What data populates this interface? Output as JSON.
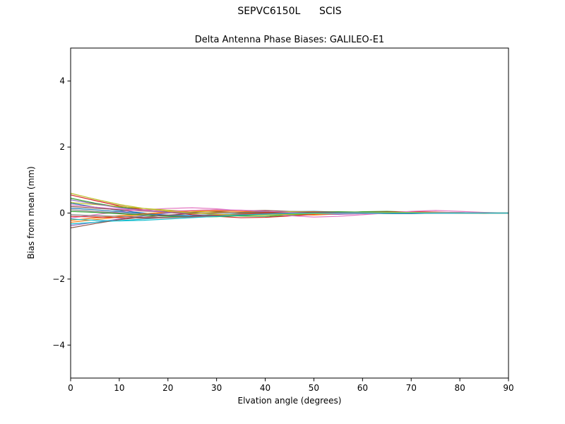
{
  "chart_data": {
    "type": "line",
    "title": "SEPVC6150L      SCIS",
    "axes_title": "Delta Antenna Phase Biases: GALILEO-E1",
    "xlabel": "Elvation angle (degrees)",
    "ylabel": "Bias from mean (mm)",
    "xlim": [
      0,
      90
    ],
    "ylim": [
      -5,
      5
    ],
    "x_ticks": [
      0,
      10,
      20,
      30,
      40,
      50,
      60,
      70,
      80,
      90
    ],
    "y_ticks": [
      -4,
      -2,
      0,
      2,
      4
    ],
    "grid": false,
    "legend": "none",
    "x": [
      0,
      5,
      10,
      15,
      20,
      25,
      30,
      35,
      40,
      45,
      50,
      55,
      60,
      65,
      70,
      75,
      80,
      85,
      90
    ],
    "series": [
      {
        "color": "#1f77b4",
        "values": [
          0.3,
          0.18,
          0.08,
          0.0,
          -0.08,
          -0.12,
          -0.1,
          -0.05,
          0.0,
          0.04,
          0.05,
          0.03,
          0.0,
          -0.02,
          -0.02,
          0.0,
          0.01,
          0.01,
          0.0
        ]
      },
      {
        "color": "#ff7f0e",
        "values": [
          -0.28,
          -0.2,
          -0.12,
          -0.05,
          0.02,
          0.08,
          0.1,
          0.06,
          0.01,
          -0.04,
          -0.06,
          -0.03,
          0.0,
          0.03,
          0.04,
          0.02,
          0.0,
          -0.01,
          0.0
        ]
      },
      {
        "color": "#2ca02c",
        "values": [
          0.45,
          0.3,
          0.18,
          0.1,
          0.04,
          0.0,
          -0.05,
          -0.09,
          -0.1,
          -0.06,
          -0.02,
          0.01,
          0.04,
          0.05,
          0.03,
          0.01,
          0.0,
          0.0,
          0.0
        ]
      },
      {
        "color": "#d62728",
        "values": [
          0.55,
          0.38,
          0.22,
          0.1,
          0.02,
          -0.05,
          -0.1,
          -0.14,
          -0.13,
          -0.09,
          -0.04,
          0.0,
          0.02,
          0.03,
          0.04,
          0.03,
          0.01,
          0.0,
          0.0
        ]
      },
      {
        "color": "#9467bd",
        "values": [
          -0.38,
          -0.28,
          -0.18,
          -0.08,
          0.0,
          0.06,
          0.09,
          0.08,
          0.04,
          0.0,
          -0.03,
          -0.04,
          -0.02,
          0.0,
          0.02,
          0.02,
          0.01,
          0.0,
          0.0
        ]
      },
      {
        "color": "#8c564b",
        "values": [
          0.2,
          0.15,
          0.1,
          0.06,
          0.03,
          0.02,
          0.04,
          0.07,
          0.08,
          0.05,
          0.02,
          0.0,
          -0.01,
          -0.01,
          0.0,
          0.01,
          0.01,
          0.0,
          0.0
        ]
      },
      {
        "color": "#e377c2",
        "values": [
          -0.15,
          -0.05,
          0.04,
          0.1,
          0.14,
          0.16,
          0.13,
          0.07,
          0.0,
          -0.08,
          -0.12,
          -0.1,
          -0.05,
          0.0,
          0.05,
          0.08,
          0.05,
          0.02,
          0.0
        ]
      },
      {
        "color": "#7f7f7f",
        "values": [
          0.1,
          0.05,
          0.0,
          -0.05,
          -0.09,
          -0.1,
          -0.06,
          -0.01,
          0.03,
          0.05,
          0.04,
          0.02,
          0.0,
          -0.01,
          -0.01,
          0.0,
          0.0,
          0.0,
          0.0
        ]
      },
      {
        "color": "#bcbd22",
        "values": [
          0.32,
          0.26,
          0.2,
          0.14,
          0.09,
          0.05,
          0.02,
          0.01,
          0.02,
          0.04,
          0.04,
          0.02,
          0.0,
          -0.01,
          0.0,
          0.01,
          0.01,
          0.0,
          0.0
        ]
      },
      {
        "color": "#17becf",
        "values": [
          -0.33,
          -0.28,
          -0.23,
          -0.18,
          -0.13,
          -0.09,
          -0.05,
          -0.02,
          0.0,
          0.01,
          0.01,
          0.0,
          -0.01,
          -0.01,
          0.0,
          0.0,
          0.0,
          0.0,
          0.0
        ]
      },
      {
        "color": "#1f77b4",
        "values": [
          0.15,
          0.1,
          0.04,
          -0.02,
          -0.06,
          -0.08,
          -0.07,
          -0.04,
          -0.01,
          0.02,
          0.03,
          0.02,
          0.01,
          0.0,
          0.0,
          0.0,
          0.0,
          0.0,
          0.0
        ]
      },
      {
        "color": "#ff7f0e",
        "values": [
          -0.22,
          -0.15,
          -0.08,
          -0.02,
          0.03,
          0.06,
          0.07,
          0.05,
          0.02,
          -0.01,
          -0.03,
          -0.02,
          -0.01,
          0.0,
          0.01,
          0.01,
          0.0,
          0.0,
          0.0
        ]
      },
      {
        "color": "#2ca02c",
        "values": [
          0.05,
          0.02,
          -0.02,
          -0.06,
          -0.1,
          -0.12,
          -0.11,
          -0.08,
          -0.04,
          0.0,
          0.03,
          0.04,
          0.03,
          0.01,
          0.0,
          0.0,
          0.0,
          0.0,
          0.0
        ]
      },
      {
        "color": "#d62728",
        "values": [
          -0.1,
          -0.12,
          -0.14,
          -0.15,
          -0.14,
          -0.11,
          -0.07,
          -0.03,
          0.0,
          0.02,
          0.03,
          0.02,
          0.01,
          0.0,
          0.0,
          0.01,
          0.0,
          0.0,
          0.0
        ]
      },
      {
        "color": "#9467bd",
        "values": [
          0.4,
          0.28,
          0.16,
          0.08,
          0.02,
          -0.02,
          -0.04,
          -0.05,
          -0.04,
          -0.02,
          0.0,
          0.01,
          0.02,
          0.02,
          0.01,
          0.0,
          0.0,
          0.0,
          0.0
        ]
      },
      {
        "color": "#8c564b",
        "values": [
          -0.45,
          -0.32,
          -0.2,
          -0.12,
          -0.06,
          -0.02,
          0.0,
          0.02,
          0.03,
          0.02,
          0.01,
          0.0,
          0.0,
          0.0,
          0.0,
          0.0,
          0.0,
          0.0,
          0.0
        ]
      },
      {
        "color": "#e377c2",
        "values": [
          0.25,
          0.18,
          0.12,
          0.08,
          0.06,
          0.08,
          0.1,
          0.09,
          0.06,
          0.02,
          -0.01,
          -0.02,
          -0.01,
          0.0,
          0.01,
          0.02,
          0.01,
          0.0,
          0.0
        ]
      },
      {
        "color": "#7f7f7f",
        "values": [
          -0.05,
          -0.08,
          -0.1,
          -0.12,
          -0.13,
          -0.12,
          -0.09,
          -0.06,
          -0.03,
          -0.01,
          0.0,
          0.01,
          0.01,
          0.0,
          0.0,
          0.0,
          0.0,
          0.0,
          0.0
        ]
      },
      {
        "color": "#bcbd22",
        "values": [
          0.6,
          0.42,
          0.26,
          0.14,
          0.06,
          0.0,
          -0.04,
          -0.06,
          -0.06,
          -0.04,
          -0.02,
          0.0,
          0.01,
          0.02,
          0.02,
          0.01,
          0.0,
          0.0,
          0.0
        ]
      },
      {
        "color": "#17becf",
        "values": [
          -0.18,
          -0.22,
          -0.24,
          -0.22,
          -0.18,
          -0.14,
          -0.1,
          -0.06,
          -0.03,
          -0.01,
          0.0,
          0.0,
          0.0,
          0.0,
          0.0,
          0.0,
          0.0,
          0.0,
          0.0
        ]
      }
    ]
  }
}
